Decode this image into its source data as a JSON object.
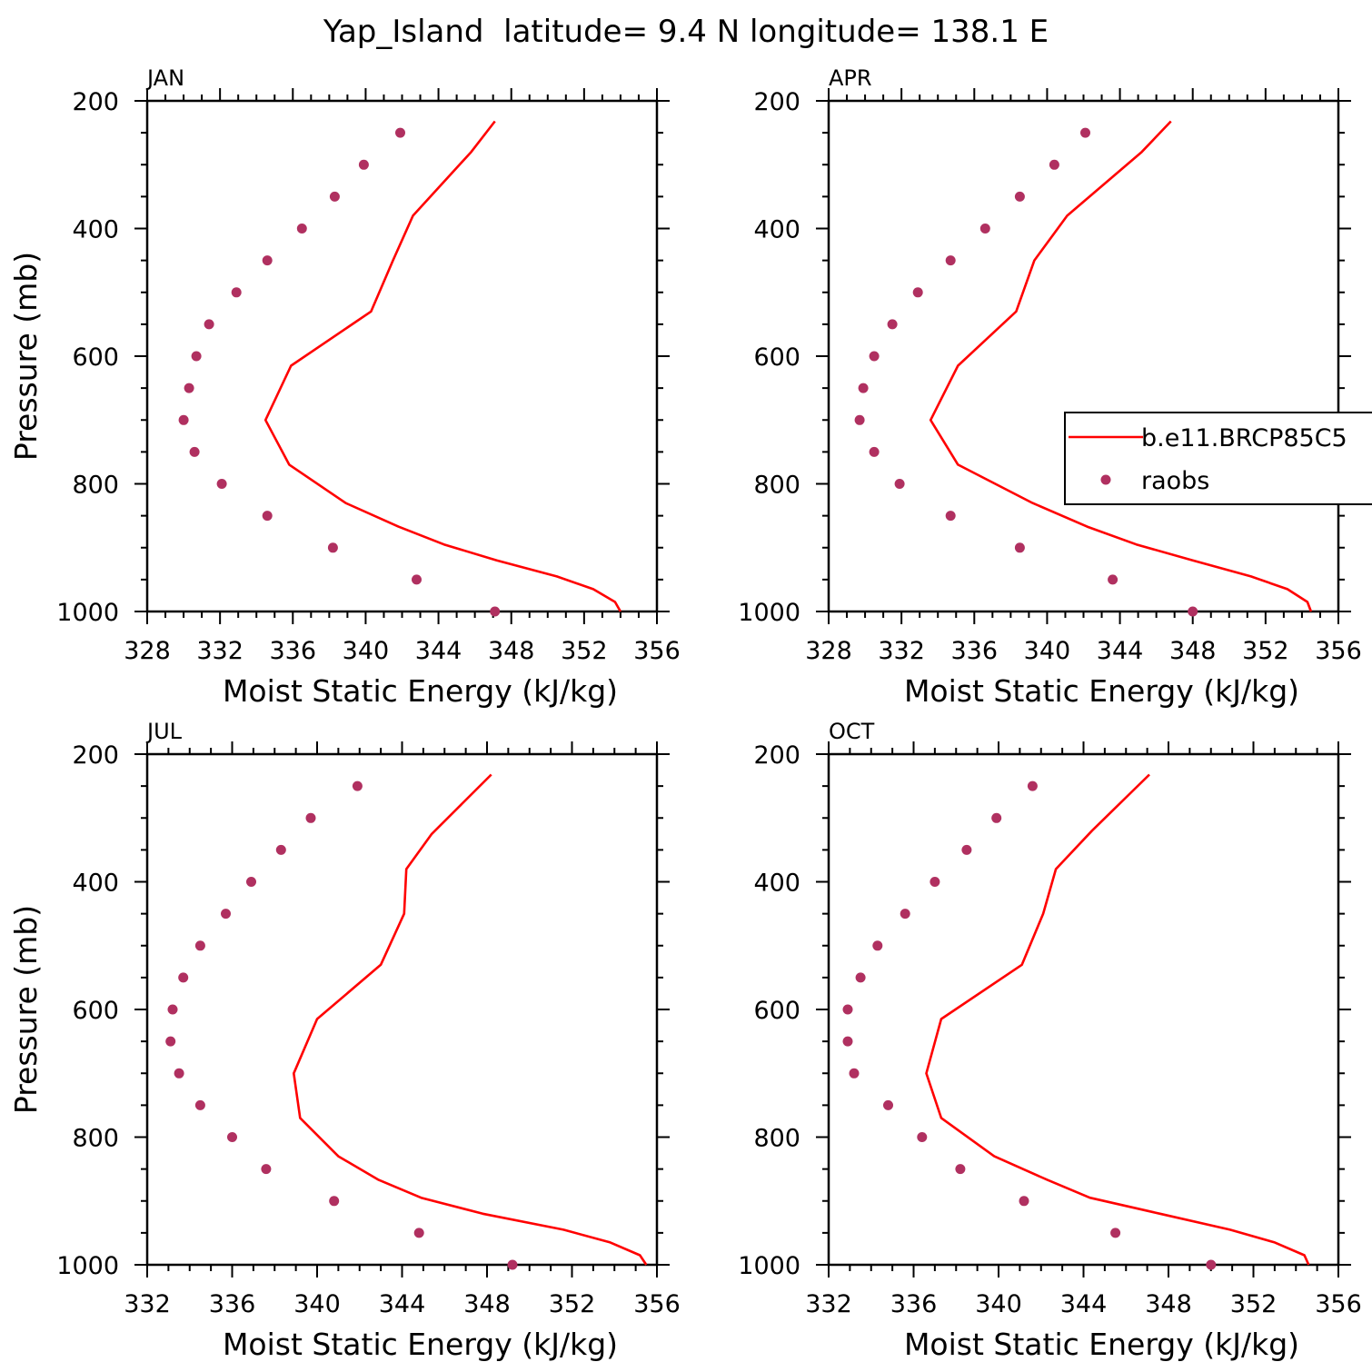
{
  "title": "Yap_Island  latitude= 9.4 N longitude= 138.1 E",
  "colors": {
    "model": "#ff0000",
    "obs": "#b03060",
    "axis": "#000000"
  },
  "chart_data": [
    {
      "type": "line",
      "panel_label": "JAN",
      "xlabel": "Moist Static Energy (kJ/kg)",
      "ylabel": "Pressure (mb)",
      "xlim": [
        328,
        356
      ],
      "ylim": [
        1000,
        200
      ],
      "xticks": [
        328,
        332,
        336,
        340,
        344,
        348,
        352,
        356
      ],
      "yticks": [
        200,
        400,
        600,
        800,
        1000
      ],
      "series": [
        {
          "name": "b.e11.BRCP85C5",
          "style": "line",
          "x": [
            354.0,
            353.7,
            352.5,
            350.5,
            347.2,
            344.3,
            341.8,
            338.9,
            335.8,
            334.5,
            335.9,
            340.3,
            341.5,
            342.6,
            345.8,
            347.1
          ],
          "y": [
            1000,
            985,
            965,
            945,
            920,
            895,
            867,
            830,
            770,
            700,
            615,
            530,
            450,
            380,
            280,
            232
          ]
        },
        {
          "name": "raobs",
          "style": "markers",
          "x": [
            347.1,
            342.8,
            338.2,
            334.6,
            332.1,
            330.6,
            330.0,
            330.3,
            330.7,
            331.4,
            332.9,
            334.6,
            336.5,
            338.3,
            339.9,
            341.9
          ],
          "y": [
            1000,
            950,
            900,
            850,
            800,
            750,
            700,
            650,
            600,
            550,
            500,
            450,
            400,
            350,
            300,
            250
          ]
        }
      ]
    },
    {
      "type": "line",
      "panel_label": "APR",
      "xlabel": "Moist Static Energy (kJ/kg)",
      "ylabel": "",
      "xlim": [
        328,
        356
      ],
      "ylim": [
        1000,
        200
      ],
      "xticks": [
        328,
        332,
        336,
        340,
        344,
        348,
        352,
        356
      ],
      "yticks": [
        200,
        400,
        600,
        800,
        1000
      ],
      "legend": {
        "placement": "right",
        "entries": [
          "b.e11.BRCP85C5",
          "raobs"
        ]
      },
      "series": [
        {
          "name": "b.e11.BRCP85C5",
          "style": "line",
          "x": [
            354.5,
            354.3,
            353.2,
            351.2,
            348.0,
            344.9,
            342.2,
            339.2,
            335.1,
            333.6,
            335.1,
            338.3,
            339.3,
            341.1,
            345.2,
            346.8
          ],
          "y": [
            1000,
            985,
            965,
            945,
            920,
            895,
            867,
            830,
            770,
            700,
            615,
            530,
            450,
            380,
            280,
            232
          ]
        },
        {
          "name": "raobs",
          "style": "markers",
          "x": [
            348.0,
            343.6,
            338.5,
            334.7,
            331.9,
            330.5,
            329.7,
            329.9,
            330.5,
            331.5,
            332.9,
            334.7,
            336.6,
            338.5,
            340.4,
            342.1
          ],
          "y": [
            1000,
            950,
            900,
            850,
            800,
            750,
            700,
            650,
            600,
            550,
            500,
            450,
            400,
            350,
            300,
            250
          ]
        }
      ]
    },
    {
      "type": "line",
      "panel_label": "JUL",
      "xlabel": "Moist Static Energy (kJ/kg)",
      "ylabel": "Pressure (mb)",
      "xlim": [
        332,
        356
      ],
      "ylim": [
        1000,
        200
      ],
      "xticks": [
        332,
        336,
        340,
        344,
        348,
        352,
        356
      ],
      "yticks": [
        200,
        400,
        600,
        800,
        1000
      ],
      "series": [
        {
          "name": "b.e11.BRCP85C5",
          "style": "line",
          "x": [
            355.5,
            355.2,
            353.8,
            351.6,
            347.8,
            344.9,
            342.9,
            341.0,
            339.2,
            338.9,
            340.0,
            343.0,
            344.1,
            344.2,
            345.4,
            348.2
          ],
          "y": [
            1000,
            985,
            965,
            945,
            920,
            895,
            867,
            830,
            770,
            700,
            615,
            530,
            450,
            380,
            325,
            232
          ]
        },
        {
          "name": "raobs",
          "style": "markers",
          "x": [
            349.2,
            344.8,
            340.8,
            337.6,
            336.0,
            334.5,
            333.5,
            333.1,
            333.2,
            333.7,
            334.5,
            335.7,
            336.9,
            338.3,
            339.7,
            341.9
          ],
          "y": [
            1000,
            950,
            900,
            850,
            800,
            750,
            700,
            650,
            600,
            550,
            500,
            450,
            400,
            350,
            300,
            250
          ]
        }
      ]
    },
    {
      "type": "line",
      "panel_label": "OCT",
      "xlabel": "Moist Static Energy (kJ/kg)",
      "ylabel": "",
      "xlim": [
        332,
        356
      ],
      "ylim": [
        1000,
        200
      ],
      "xticks": [
        332,
        336,
        340,
        344,
        348,
        352,
        356
      ],
      "yticks": [
        200,
        400,
        600,
        800,
        1000
      ],
      "series": [
        {
          "name": "b.e11.BRCP85C5",
          "style": "line",
          "x": [
            354.6,
            354.4,
            353.0,
            350.9,
            347.6,
            344.3,
            342.3,
            339.8,
            337.3,
            336.6,
            337.3,
            341.1,
            342.1,
            342.7,
            344.4,
            347.1
          ],
          "y": [
            1000,
            985,
            965,
            945,
            920,
            895,
            867,
            830,
            770,
            700,
            615,
            530,
            450,
            380,
            320,
            232
          ]
        },
        {
          "name": "raobs",
          "style": "markers",
          "x": [
            350.0,
            345.5,
            341.2,
            338.2,
            336.4,
            334.8,
            333.2,
            332.9,
            332.9,
            333.5,
            334.3,
            335.6,
            337.0,
            338.5,
            339.9,
            341.6
          ],
          "y": [
            1000,
            950,
            900,
            850,
            800,
            750,
            700,
            650,
            600,
            550,
            500,
            450,
            400,
            350,
            300,
            250
          ]
        }
      ]
    }
  ]
}
